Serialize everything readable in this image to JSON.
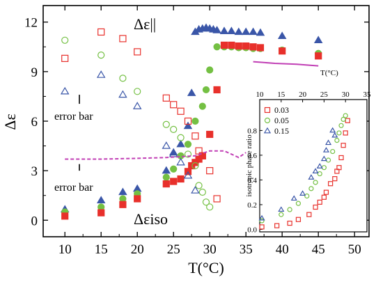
{
  "chart_data": [
    {
      "type": "scatter",
      "xlabel": "T(°C)",
      "ylabel": "Δε",
      "xlim": [
        7,
        52
      ],
      "ylim": [
        -1,
        13
      ],
      "x_ticks": [
        10,
        15,
        20,
        25,
        30,
        35,
        40,
        45,
        50
      ],
      "y_ticks": [
        0,
        3,
        6,
        9,
        12
      ],
      "annotations": {
        "par": "Δε||",
        "iso": "Δεiso",
        "err1": "error bar",
        "err2": "error bar"
      },
      "colors": {
        "red": "#e8302b",
        "green": "#74c043",
        "blue": "#3a56a8",
        "magenta": "#c13fb5"
      },
      "series": [
        {
          "marker": "filled-triangle",
          "color": "blue",
          "points": [
            [
              10,
              0.65
            ],
            [
              15,
              1.2
            ],
            [
              18,
              1.7
            ],
            [
              20,
              1.9
            ],
            [
              24,
              3.0
            ],
            [
              25,
              4.1
            ],
            [
              26,
              4.6
            ],
            [
              27,
              5.7
            ],
            [
              27.5,
              7.7
            ],
            [
              28,
              11.4
            ],
            [
              28.5,
              11.55
            ],
            [
              29,
              11.6
            ],
            [
              29.5,
              11.65
            ],
            [
              30,
              11.6
            ],
            [
              30.5,
              11.55
            ],
            [
              31,
              11.5
            ],
            [
              32,
              11.45
            ],
            [
              33,
              11.45
            ],
            [
              34,
              11.4
            ],
            [
              35,
              11.4
            ],
            [
              36,
              11.4
            ],
            [
              37,
              11.35
            ],
            [
              40,
              11.15
            ],
            [
              45,
              10.9
            ]
          ]
        },
        {
          "marker": "filled-circle",
          "color": "green",
          "points": [
            [
              10,
              0.5
            ],
            [
              15,
              0.8
            ],
            [
              18,
              1.3
            ],
            [
              20,
              1.6
            ],
            [
              24,
              2.6
            ],
            [
              25,
              3.1
            ],
            [
              26,
              3.9
            ],
            [
              27,
              4.6
            ],
            [
              28,
              6.0
            ],
            [
              29,
              6.9
            ],
            [
              29.5,
              7.9
            ],
            [
              30,
              9.1
            ],
            [
              31,
              10.5
            ],
            [
              32,
              10.5
            ],
            [
              33,
              10.5
            ],
            [
              34,
              10.45
            ],
            [
              35,
              10.45
            ],
            [
              36,
              10.4
            ],
            [
              37,
              10.4
            ],
            [
              40,
              10.3
            ],
            [
              45,
              10.1
            ]
          ]
        },
        {
          "marker": "filled-square",
          "color": "red",
          "points": [
            [
              10,
              0.25
            ],
            [
              15,
              0.45
            ],
            [
              18,
              0.95
            ],
            [
              20,
              1.3
            ],
            [
              24,
              2.2
            ],
            [
              25,
              2.35
            ],
            [
              26,
              2.5
            ],
            [
              27,
              2.95
            ],
            [
              27.5,
              3.3
            ],
            [
              28,
              3.5
            ],
            [
              28.5,
              3.7
            ],
            [
              29,
              3.9
            ],
            [
              30,
              5.2
            ],
            [
              31,
              7.9
            ],
            [
              32,
              10.6
            ],
            [
              33,
              10.6
            ],
            [
              34,
              10.55
            ],
            [
              35,
              10.55
            ],
            [
              36,
              10.5
            ],
            [
              37,
              10.45
            ],
            [
              40,
              10.25
            ],
            [
              45,
              9.95
            ]
          ]
        },
        {
          "marker": "open-square",
          "color": "red",
          "points": [
            [
              10,
              9.8
            ],
            [
              15,
              11.4
            ],
            [
              18,
              11.0
            ],
            [
              20,
              10.2
            ],
            [
              24,
              7.4
            ],
            [
              25,
              7.0
            ],
            [
              26,
              6.6
            ],
            [
              27,
              6.0
            ],
            [
              28,
              5.1
            ],
            [
              28.5,
              4.2
            ],
            [
              29,
              3.9
            ],
            [
              30,
              3.0
            ],
            [
              31,
              1.3
            ]
          ]
        },
        {
          "marker": "open-circle",
          "color": "green",
          "points": [
            [
              10,
              10.9
            ],
            [
              15,
              10.0
            ],
            [
              18,
              8.6
            ],
            [
              20,
              7.8
            ],
            [
              24,
              5.8
            ],
            [
              25,
              5.5
            ],
            [
              26,
              5.0
            ],
            [
              27,
              4.0
            ],
            [
              28,
              3.3
            ],
            [
              28.5,
              2.1
            ],
            [
              29,
              1.7
            ],
            [
              29.5,
              1.1
            ],
            [
              30,
              0.8
            ]
          ]
        },
        {
          "marker": "open-triangle",
          "color": "blue",
          "points": [
            [
              10,
              7.8
            ],
            [
              15,
              8.8
            ],
            [
              18,
              7.6
            ],
            [
              20,
              6.9
            ],
            [
              24,
              4.5
            ],
            [
              25,
              4.0
            ],
            [
              26,
              3.5
            ],
            [
              27,
              2.7
            ],
            [
              28,
              1.8
            ]
          ]
        },
        {
          "marker": "dash-line",
          "color": "magenta",
          "points": [
            [
              10,
              3.7
            ],
            [
              15,
              3.7
            ],
            [
              20,
              3.75
            ],
            [
              24,
              3.8
            ],
            [
              26,
              3.85
            ],
            [
              28,
              3.9
            ],
            [
              30,
              4.2
            ],
            [
              32,
              4.2
            ],
            [
              34,
              3.8
            ],
            [
              35,
              4.1
            ]
          ]
        },
        {
          "marker": "line",
          "color": "magenta",
          "points": [
            [
              36,
              9.6
            ],
            [
              39,
              9.5
            ],
            [
              42,
              9.45
            ],
            [
              45,
              9.35
            ]
          ]
        }
      ]
    },
    {
      "type": "scatter",
      "xlabel": "T(°C)",
      "ylabel": "isotropic phase ratio",
      "xlim": [
        10,
        35
      ],
      "ylim": [
        -0.02,
        1.05
      ],
      "x_ticks": [
        10,
        15,
        20,
        25,
        30,
        35
      ],
      "y_ticks": [
        "0.0",
        "0.2",
        "0.4",
        "0.6",
        "0.8"
      ],
      "legend": [
        {
          "label": "0.03",
          "color": "red",
          "marker": "open-square"
        },
        {
          "label": "0.05",
          "color": "green",
          "marker": "open-circle"
        },
        {
          "label": "0.15",
          "color": "blue",
          "marker": "open-triangle"
        }
      ],
      "series": [
        {
          "name": "0.03",
          "marker": "open-square",
          "color": "red",
          "points": [
            [
              10.5,
              0.02
            ],
            [
              14,
              0.03
            ],
            [
              17,
              0.05
            ],
            [
              19,
              0.08
            ],
            [
              21.5,
              0.12
            ],
            [
              23,
              0.18
            ],
            [
              24,
              0.22
            ],
            [
              25,
              0.26
            ],
            [
              25.5,
              0.3
            ],
            [
              26.5,
              0.37
            ],
            [
              27.5,
              0.41
            ],
            [
              28,
              0.47
            ],
            [
              28.5,
              0.5
            ],
            [
              29,
              0.58
            ],
            [
              29.5,
              0.68
            ],
            [
              30,
              0.78
            ],
            [
              30.5,
              0.88
            ]
          ]
        },
        {
          "name": "0.05",
          "marker": "open-circle",
          "color": "green",
          "points": [
            [
              10.5,
              0.07
            ],
            [
              15,
              0.12
            ],
            [
              17,
              0.16
            ],
            [
              19,
              0.21
            ],
            [
              21,
              0.27
            ],
            [
              22,
              0.33
            ],
            [
              23,
              0.38
            ],
            [
              24,
              0.45
            ],
            [
              25,
              0.5
            ],
            [
              26,
              0.56
            ],
            [
              27,
              0.63
            ],
            [
              28,
              0.72
            ],
            [
              28.5,
              0.78
            ],
            [
              29,
              0.84
            ],
            [
              29.5,
              0.89
            ],
            [
              30,
              0.92
            ]
          ]
        },
        {
          "name": "0.15",
          "marker": "open-triangle",
          "color": "blue",
          "points": [
            [
              10.5,
              0.09
            ],
            [
              15,
              0.16
            ],
            [
              18,
              0.25
            ],
            [
              20,
              0.29
            ],
            [
              22,
              0.42
            ],
            [
              23,
              0.47
            ],
            [
              24,
              0.51
            ],
            [
              25,
              0.57
            ],
            [
              25.5,
              0.64
            ],
            [
              26,
              0.7
            ],
            [
              27,
              0.8
            ],
            [
              27.5,
              0.76
            ]
          ]
        }
      ]
    }
  ]
}
